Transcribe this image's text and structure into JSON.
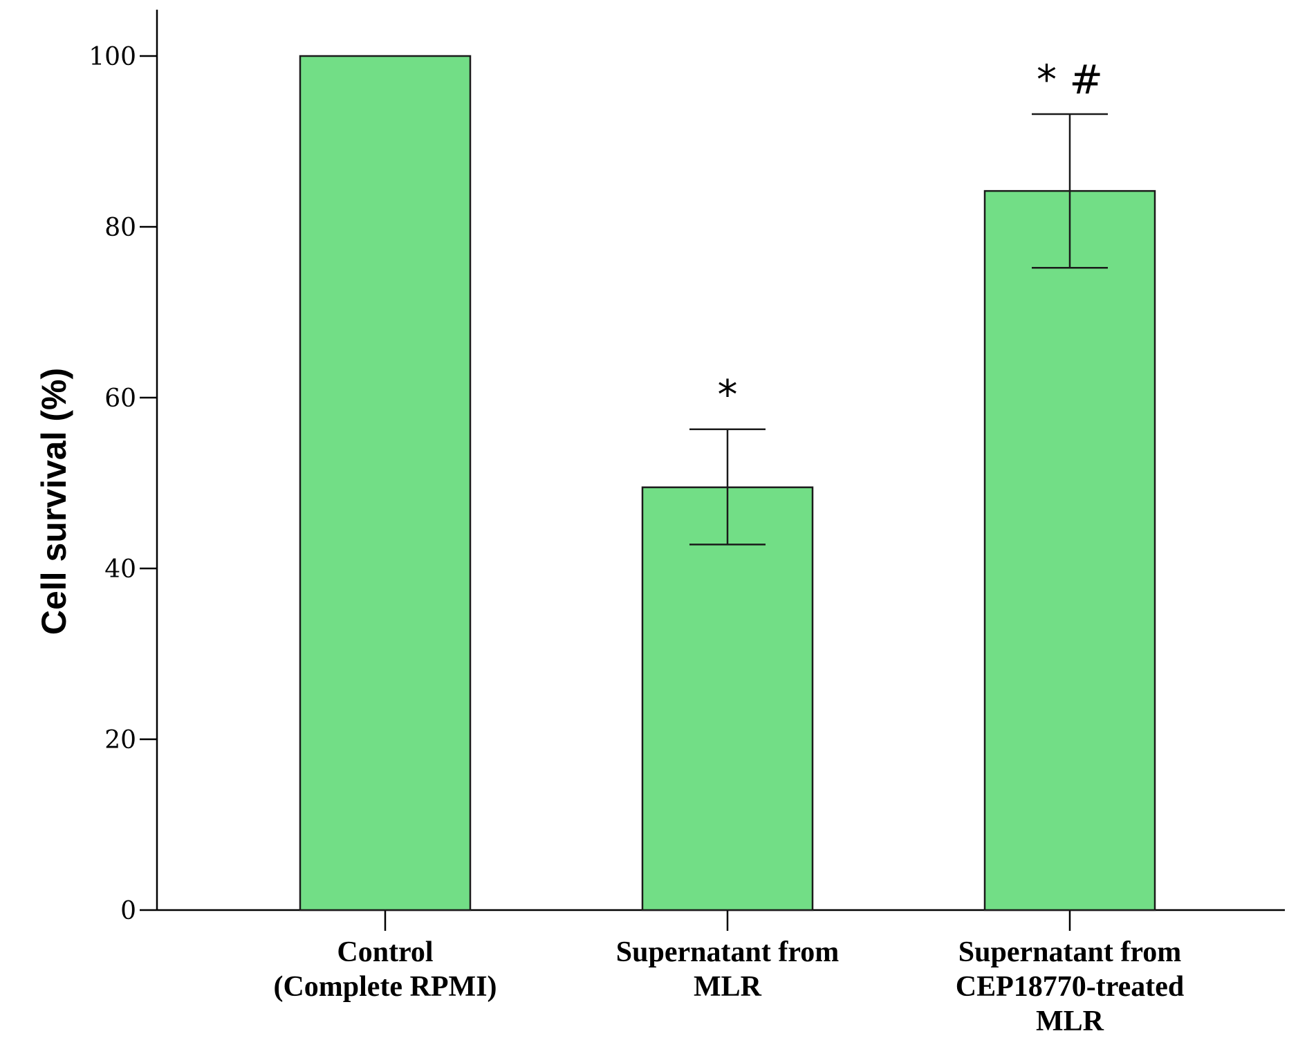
{
  "chart_data": {
    "type": "bar",
    "categories": [
      [
        "Control",
        "(Complete RPMI)"
      ],
      [
        "Supernatant from",
        "MLR"
      ],
      [
        "Supernatant from",
        "CEP18770-treated",
        "MLR"
      ]
    ],
    "values": [
      100,
      49.5,
      84.2
    ],
    "error_upper": [
      null,
      56.3,
      93.2
    ],
    "error_lower": [
      null,
      42.8,
      75.2
    ],
    "annotations": [
      "",
      "*",
      "* #"
    ],
    "ylabel": "Cell survival (%)",
    "xlabel": "",
    "title": "",
    "ylim": [
      0,
      100
    ],
    "yticks": [
      0,
      20,
      40,
      60,
      80,
      100
    ],
    "grid": false,
    "colors": {
      "bar_fill": "#72de86",
      "bar_stroke": "#1a1a1a",
      "axis": "#000000"
    }
  }
}
